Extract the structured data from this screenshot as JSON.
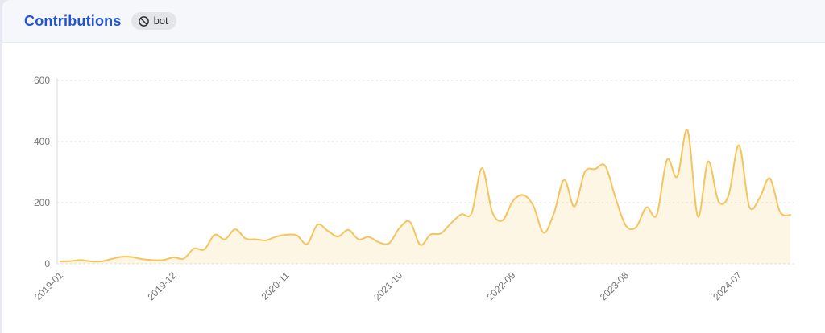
{
  "header": {
    "title": "Contributions",
    "badge": {
      "icon": "ban-icon",
      "label": "bot"
    }
  },
  "colors": {
    "title": "#2253d4",
    "line": "#f4c45e",
    "fill": "rgba(244,196,94,0.16)",
    "grid": "#dcdcdc",
    "axis_line": "#d8d8d8",
    "tick_text": "#757575",
    "header_bg": "#f6f7fa",
    "badge_bg": "#e4e5e8"
  },
  "chart_data": {
    "type": "area",
    "title": "Contributions",
    "smooth": true,
    "legend": "none",
    "grid": "dotted-horizontal",
    "ylim": [
      0,
      600
    ],
    "y_ticks": [
      0,
      200,
      400,
      600
    ],
    "x_tick_labels": [
      "2019-01",
      "2019-12",
      "2020-11",
      "2021-10",
      "2022-09",
      "2023-08",
      "2024-07"
    ],
    "x": [
      "2019-01",
      "2019-02",
      "2019-03",
      "2019-04",
      "2019-05",
      "2019-06",
      "2019-07",
      "2019-08",
      "2019-09",
      "2019-10",
      "2019-11",
      "2019-12",
      "2020-01",
      "2020-02",
      "2020-03",
      "2020-04",
      "2020-05",
      "2020-06",
      "2020-07",
      "2020-08",
      "2020-09",
      "2020-10",
      "2020-11",
      "2020-12",
      "2021-01",
      "2021-02",
      "2021-03",
      "2021-04",
      "2021-05",
      "2021-06",
      "2021-07",
      "2021-08",
      "2021-09",
      "2021-10",
      "2021-11",
      "2021-12",
      "2022-01",
      "2022-02",
      "2022-03",
      "2022-04",
      "2022-05",
      "2022-06",
      "2022-07",
      "2022-08",
      "2022-09",
      "2022-10",
      "2022-11",
      "2022-12",
      "2023-01",
      "2023-02",
      "2023-03",
      "2023-04",
      "2023-05",
      "2023-06",
      "2023-07",
      "2023-08",
      "2023-09",
      "2023-10",
      "2023-11",
      "2023-12",
      "2024-01",
      "2024-02",
      "2024-03",
      "2024-04",
      "2024-05",
      "2024-06",
      "2024-07",
      "2024-08",
      "2024-09",
      "2024-10",
      "2024-11",
      "2024-12"
    ],
    "values": [
      8,
      9,
      12,
      8,
      8,
      16,
      23,
      22,
      15,
      12,
      12,
      21,
      17,
      50,
      47,
      95,
      80,
      113,
      83,
      80,
      77,
      89,
      95,
      93,
      65,
      128,
      108,
      89,
      111,
      80,
      88,
      70,
      68,
      118,
      137,
      62,
      96,
      99,
      133,
      162,
      166,
      313,
      170,
      142,
      205,
      225,
      190,
      102,
      165,
      275,
      187,
      300,
      310,
      320,
      215,
      125,
      120,
      185,
      160,
      340,
      285,
      437,
      155,
      335,
      205,
      225,
      388,
      188,
      215,
      280,
      170,
      160
    ]
  }
}
